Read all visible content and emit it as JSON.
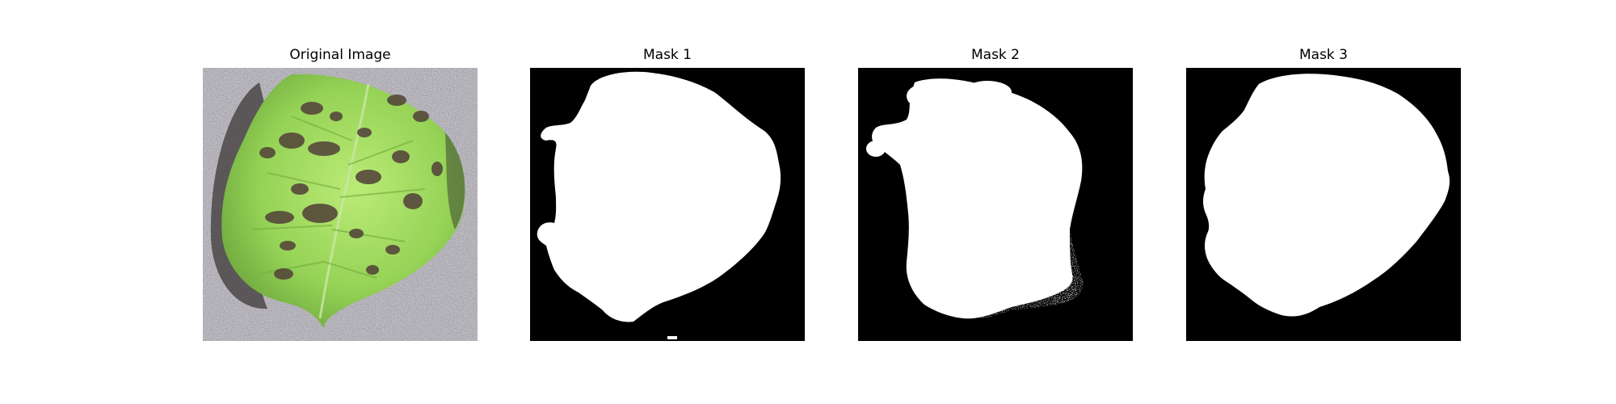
{
  "figure": {
    "panels": [
      {
        "title": "Original Image",
        "content": "photo"
      },
      {
        "title": "Mask 1",
        "content": "mask"
      },
      {
        "title": "Mask 2",
        "content": "mask"
      },
      {
        "title": "Mask 3",
        "content": "mask"
      }
    ]
  },
  "colors": {
    "figure_background": "#ffffff",
    "mask_background": "#000000",
    "mask_foreground": "#ffffff",
    "leaf_green": "#8fd24a",
    "leaf_spots": "#4a3b2c",
    "surface_gray": "#b9b6c0"
  }
}
